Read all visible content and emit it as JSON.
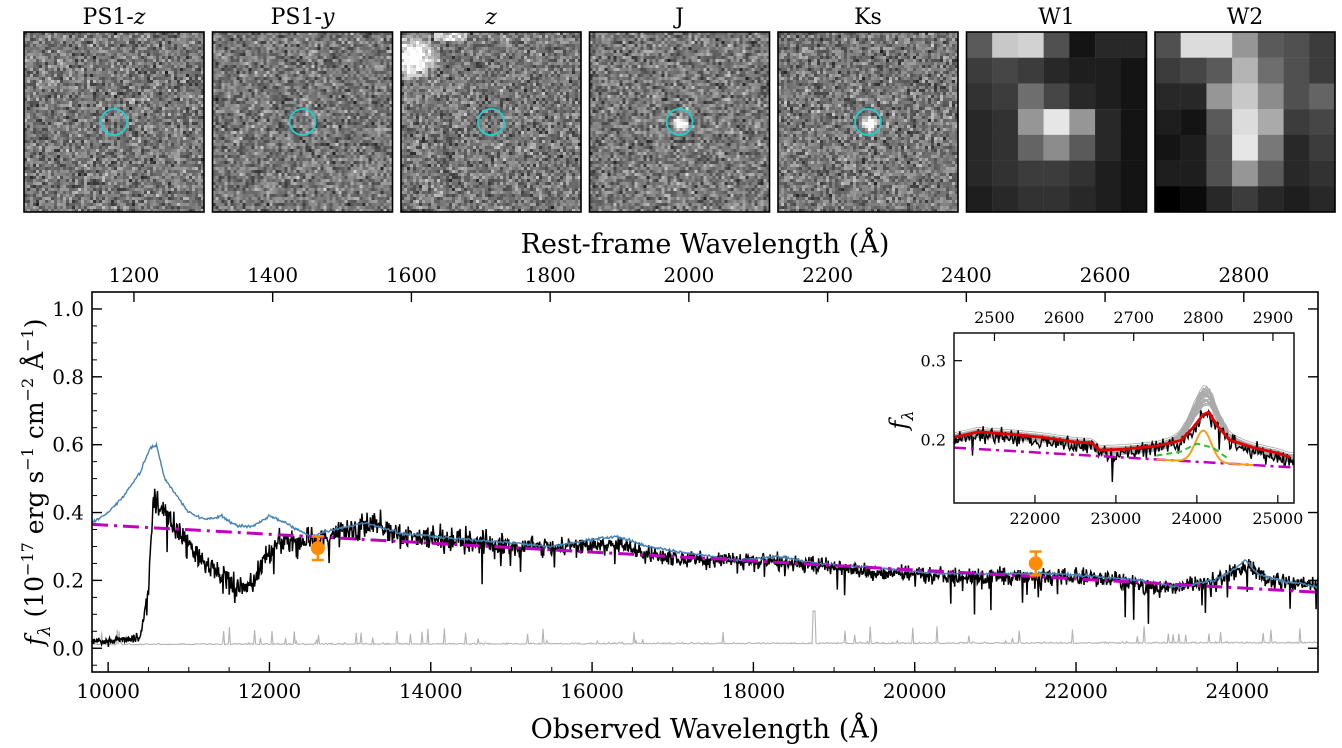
{
  "cutouts": [
    {
      "label": "PS1-",
      "label_italic": "z",
      "kind": "noise",
      "circle": true,
      "seed": 11
    },
    {
      "label": "PS1-",
      "label_italic": "y",
      "kind": "noise",
      "circle": true,
      "seed": 23
    },
    {
      "label": "",
      "label_italic": "z",
      "kind": "noise-blob",
      "circle": true,
      "seed": 37
    },
    {
      "label": "J",
      "label_italic": "",
      "kind": "noise-source",
      "circle": true,
      "seed": 41
    },
    {
      "label": "Ks",
      "label_italic": "",
      "kind": "noise-source",
      "circle": true,
      "seed": 53
    },
    {
      "label": "W1",
      "label_italic": "",
      "kind": "grid-w1",
      "circle": false,
      "seed": 67
    },
    {
      "label": "W2",
      "label_italic": "",
      "kind": "grid-w2",
      "circle": false,
      "seed": 71
    }
  ],
  "colors": {
    "observed": "#000000",
    "composite": "#4682b4",
    "continuum": "#bf00bf",
    "error": "#b4b4b4",
    "photometry": "#ff8c00",
    "circle": "#20d0d0",
    "fit": "#e00000",
    "gauss": "#f4a020",
    "fe": "#30c030"
  },
  "chart_data": [
    {
      "type": "line",
      "xlabel": "Observed Wavelength (Å)",
      "top_xlabel": "Rest-frame Wavelength (Å)",
      "ylabel_symbol": "f",
      "ylabel_sub": "λ",
      "ylabel_units": "(10",
      "ylabel_exp1": "−17",
      "ylabel_mid1": " erg s",
      "ylabel_exp2": "−1",
      "ylabel_mid2": " cm",
      "ylabel_exp3": "−2",
      "ylabel_mid3": " Å",
      "ylabel_exp4": "−1",
      "ylabel_end": ")",
      "xlim": [
        9800,
        25000
      ],
      "ylim": [
        -0.07,
        1.05
      ],
      "xticks": [
        "10000",
        "12000",
        "14000",
        "16000",
        "18000",
        "20000",
        "22000",
        "24000"
      ],
      "yticks": [
        "0.0",
        "0.2",
        "0.4",
        "0.6",
        "0.8",
        "1.0"
      ],
      "top_xticks": [
        "1200",
        "1400",
        "1600",
        "1800",
        "2000",
        "2200",
        "2400",
        "2600",
        "2800"
      ],
      "redshift": 7.6,
      "series": [
        {
          "id": "observed",
          "x": [
            9800,
            10400,
            10500,
            10560,
            10650,
            10800,
            11000,
            11300,
            11600,
            11800,
            11950,
            12100,
            12400,
            12700,
            13000,
            13300,
            13700,
            14200,
            14700,
            15300,
            15800,
            16300,
            16800,
            17400,
            17900,
            18500,
            19000,
            19500,
            20000,
            20500,
            21000,
            21500,
            22000,
            22500,
            22900,
            23300,
            23700,
            24000,
            24150,
            24400,
            24700,
            25000
          ],
          "y": [
            0.02,
            0.03,
            0.18,
            0.44,
            0.41,
            0.36,
            0.3,
            0.24,
            0.17,
            0.19,
            0.28,
            0.31,
            0.31,
            0.32,
            0.35,
            0.37,
            0.33,
            0.32,
            0.31,
            0.3,
            0.3,
            0.31,
            0.27,
            0.26,
            0.26,
            0.25,
            0.24,
            0.22,
            0.22,
            0.21,
            0.21,
            0.21,
            0.21,
            0.2,
            0.18,
            0.18,
            0.2,
            0.23,
            0.24,
            0.2,
            0.19,
            0.19
          ]
        },
        {
          "id": "composite",
          "x": [
            9800,
            10000,
            10200,
            10400,
            10520,
            10600,
            10700,
            10850,
            11000,
            11200,
            11400,
            11600,
            11800,
            12000,
            12200,
            12500,
            12800,
            13200,
            13600,
            14000,
            14500,
            15000,
            15500,
            16000,
            16300,
            16700,
            17200,
            17800,
            18300,
            18800,
            19300,
            19800,
            20300,
            20800,
            21300,
            21800,
            22300,
            22800,
            23300,
            23700,
            23950,
            24100,
            24250,
            24500,
            24800,
            25000
          ],
          "y": [
            0.37,
            0.4,
            0.45,
            0.52,
            0.59,
            0.6,
            0.5,
            0.45,
            0.4,
            0.38,
            0.39,
            0.36,
            0.36,
            0.39,
            0.37,
            0.33,
            0.35,
            0.37,
            0.34,
            0.33,
            0.32,
            0.31,
            0.3,
            0.32,
            0.33,
            0.3,
            0.28,
            0.26,
            0.27,
            0.25,
            0.24,
            0.23,
            0.22,
            0.22,
            0.22,
            0.22,
            0.21,
            0.2,
            0.18,
            0.2,
            0.23,
            0.26,
            0.22,
            0.2,
            0.19,
            0.18
          ]
        },
        {
          "id": "continuum",
          "x": [
            9800,
            25000
          ],
          "y": [
            0.365,
            0.165
          ]
        },
        {
          "id": "error",
          "x": [
            9800,
            25000
          ],
          "y": [
            0.01,
            0.015
          ]
        }
      ],
      "photometry": [
        {
          "x": 12600,
          "y": 0.295,
          "err": 0.035
        },
        {
          "x": 21500,
          "y": 0.25,
          "err": 0.035
        }
      ]
    },
    {
      "type": "line",
      "ylabel_symbol": "f",
      "ylabel_sub": "λ",
      "xlim": [
        21000,
        25200
      ],
      "ylim": [
        0.12,
        0.335
      ],
      "xticks": [
        "22000",
        "23000",
        "24000",
        "25000"
      ],
      "yticks": [
        "0.2",
        "0.3"
      ],
      "top_xticks": [
        "2500",
        "2600",
        "2700",
        "2800",
        "2900"
      ],
      "series": [
        {
          "id": "inset-fit",
          "x": [
            21000,
            21300,
            21700,
            22100,
            22500,
            22700,
            22800,
            23100,
            23500,
            23800,
            23950,
            24080,
            24150,
            24250,
            24400,
            24700,
            25000,
            25150
          ],
          "y": [
            0.203,
            0.21,
            0.207,
            0.203,
            0.197,
            0.196,
            0.187,
            0.188,
            0.192,
            0.199,
            0.215,
            0.232,
            0.235,
            0.218,
            0.2,
            0.19,
            0.183,
            0.178
          ]
        },
        {
          "id": "inset-continuum",
          "x": [
            21000,
            25200
          ],
          "y": [
            0.19,
            0.165
          ]
        },
        {
          "id": "inset-fe",
          "x": [
            23500,
            23800,
            24000,
            24200,
            24400
          ],
          "y": [
            0.18,
            0.185,
            0.195,
            0.19,
            0.175
          ]
        }
      ]
    }
  ]
}
